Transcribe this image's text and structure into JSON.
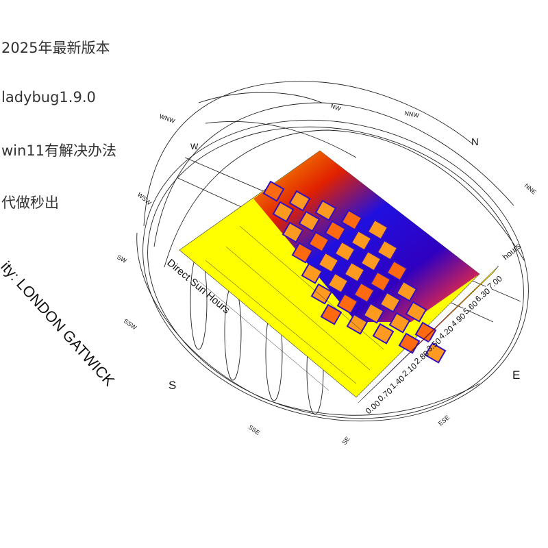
{
  "notes": [
    "2025年最新版本",
    "ladybug1.9.0",
    "win11有解决办法",
    "代做秒出"
  ],
  "location": "ity: LONDON GATWICK",
  "legend": {
    "title": "Direct Sun Hours",
    "unit": "hours",
    "values": [
      "0.00",
      "0.70",
      "1.40",
      "2.10",
      "2.80",
      "3.50",
      "4.20",
      "4.90",
      "5.60",
      "6.30",
      "7.00"
    ]
  },
  "compass": [
    "NW",
    "NNW",
    "N",
    "NNE",
    "E",
    "ESE",
    "SE",
    "SSE",
    "S",
    "SSW",
    "SW",
    "WSW",
    "W",
    "WNW"
  ]
}
